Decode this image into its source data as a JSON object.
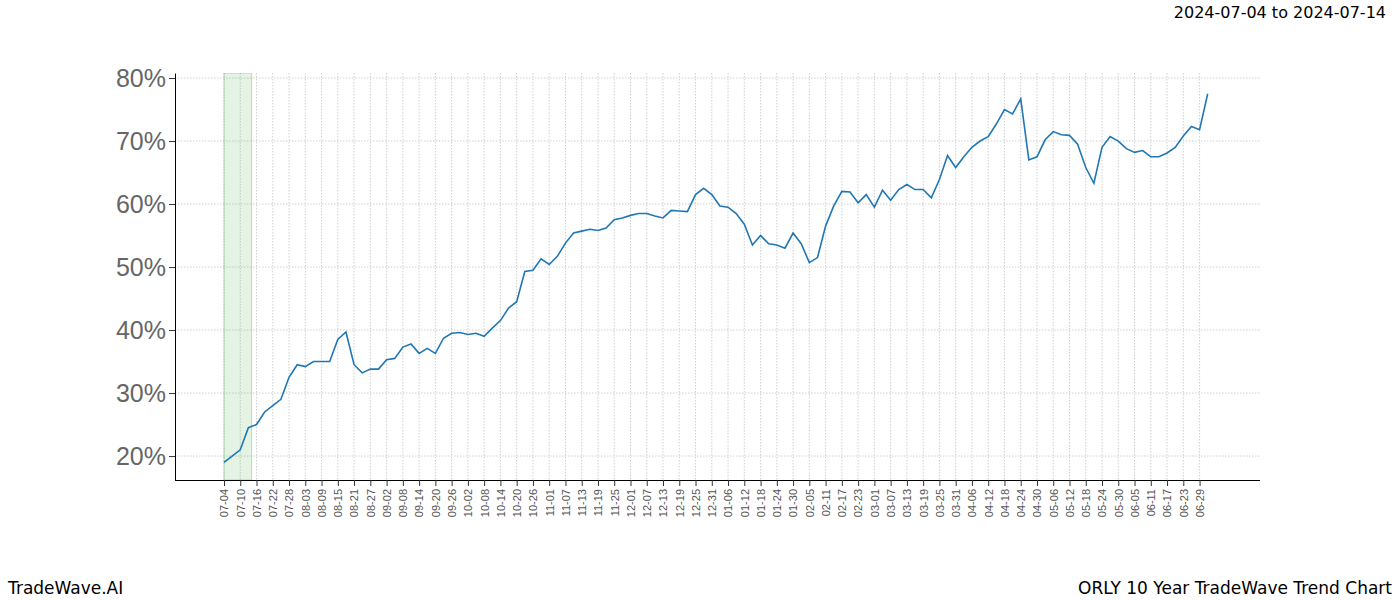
{
  "chart_data": {
    "type": "line",
    "title": "2024-07-04 to 2024-07-14",
    "annotations": [
      "TradeWave.AI",
      "ORLY 10 Year TradeWave Trend Chart"
    ],
    "x": [
      "07-04",
      null,
      "07-10",
      null,
      "07-16",
      null,
      "07-22",
      null,
      "07-28",
      null,
      "08-03",
      null,
      "08-09",
      null,
      "08-15",
      null,
      "08-21",
      null,
      "08-27",
      null,
      "09-02",
      null,
      "09-08",
      null,
      "09-14",
      null,
      "09-20",
      null,
      "09-26",
      null,
      "10-02",
      null,
      "10-08",
      null,
      "10-14",
      null,
      "10-20",
      null,
      "10-26",
      null,
      "11-01",
      null,
      "11-07",
      null,
      "11-13",
      null,
      "11-19",
      null,
      "11-25",
      null,
      "12-01",
      null,
      "12-07",
      null,
      "12-13",
      null,
      "12-19",
      null,
      "12-25",
      null,
      "12-31",
      null,
      "01-06",
      null,
      "01-12",
      null,
      "01-18",
      null,
      "01-24",
      null,
      "01-30",
      null,
      "02-05",
      null,
      "02-11",
      null,
      "02-17",
      null,
      "02-23",
      null,
      "03-01",
      null,
      "03-07",
      null,
      "03-13",
      null,
      "03-19",
      null,
      "03-25",
      null,
      "03-31",
      null,
      "04-06",
      null,
      "04-12",
      null,
      "04-18",
      null,
      "04-24",
      null,
      "04-30",
      null,
      "05-06",
      null,
      "05-12",
      null,
      "05-18",
      null,
      "05-24",
      null,
      "05-30",
      null,
      "06-05",
      null,
      "06-11",
      null,
      "06-17",
      null,
      "06-23",
      null,
      "06-29",
      null
    ],
    "values": [
      19,
      20,
      21,
      24.5,
      25,
      27,
      28,
      29,
      32.5,
      34.5,
      34.2,
      35,
      35,
      35,
      38.5,
      39.7,
      34.5,
      33.2,
      33.8,
      33.8,
      35.3,
      35.5,
      37.3,
      37.8,
      36.3,
      37.1,
      36.3,
      38.7,
      39.5,
      39.6,
      39.3,
      39.5,
      39,
      40.3,
      41.5,
      43.5,
      44.5,
      49.3,
      49.5,
      51.3,
      50.4,
      51.7,
      53.8,
      55.4,
      55.7,
      56,
      55.8,
      56.2,
      57.5,
      57.8,
      58.2,
      58.5,
      58.5,
      58.1,
      57.8,
      59,
      58.9,
      58.8,
      61.5,
      62.5,
      61.5,
      59.7,
      59.5,
      58.5,
      56.8,
      53.5,
      55,
      53.7,
      53.5,
      53,
      55.4,
      53.7,
      50.7,
      51.5,
      56.5,
      59.7,
      62,
      61.9,
      60.2,
      61.5,
      59.5,
      62.2,
      60.6,
      62.3,
      63.1,
      62.3,
      62.3,
      61,
      63.9,
      67.7,
      65.8,
      67.5,
      69,
      70,
      70.7,
      72.7,
      75,
      74.3,
      76.7,
      67,
      67.5,
      70.2,
      71.5,
      71,
      70.9,
      69.5,
      65.8,
      63.3,
      69,
      70.7,
      70,
      68.8,
      68.2,
      68.5,
      67.5,
      67.5,
      68.1,
      69,
      70.8,
      72.3,
      71.8,
      77.5
    ],
    "color": "#1f77b4",
    "highlight": [
      0,
      3.4
    ],
    "ylim": [
      16.2,
      80.8
    ],
    "yticks": [
      {
        "value": 20,
        "label": "20%"
      },
      {
        "value": 30,
        "label": "30%"
      },
      {
        "value": 40,
        "label": "40%"
      },
      {
        "value": 50,
        "label": "50%"
      },
      {
        "value": 60,
        "label": "60%"
      },
      {
        "value": 70,
        "label": "70%"
      },
      {
        "value": 80,
        "label": "80%"
      }
    ],
    "grid": true
  }
}
